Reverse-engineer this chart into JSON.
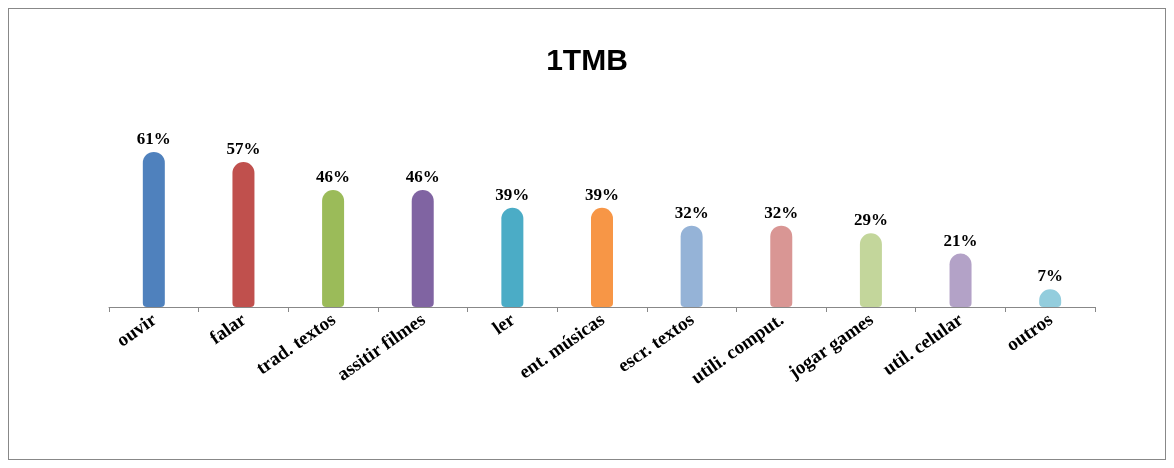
{
  "chart_data": {
    "type": "bar",
    "title": "1TMB",
    "categories": [
      "ouvir",
      "falar",
      "trad. textos",
      "assitir filmes",
      "ler",
      "ent. músicas",
      "escr. textos",
      "utili. comput.",
      "jogar games",
      "util. celular",
      "outros"
    ],
    "values": [
      61,
      57,
      46,
      46,
      39,
      39,
      32,
      32,
      29,
      21,
      7
    ],
    "colors": [
      "#4f81bd",
      "#c0504d",
      "#9bbb59",
      "#8064a2",
      "#4bacc6",
      "#f79646",
      "#95b3d7",
      "#d99694",
      "#c3d69b",
      "#b3a2c7",
      "#93cddd"
    ],
    "value_labels": [
      "61%",
      "57%",
      "46%",
      "46%",
      "39%",
      "39%",
      "32%",
      "32%",
      "29%",
      "21%",
      "7%"
    ],
    "grid": false
  }
}
